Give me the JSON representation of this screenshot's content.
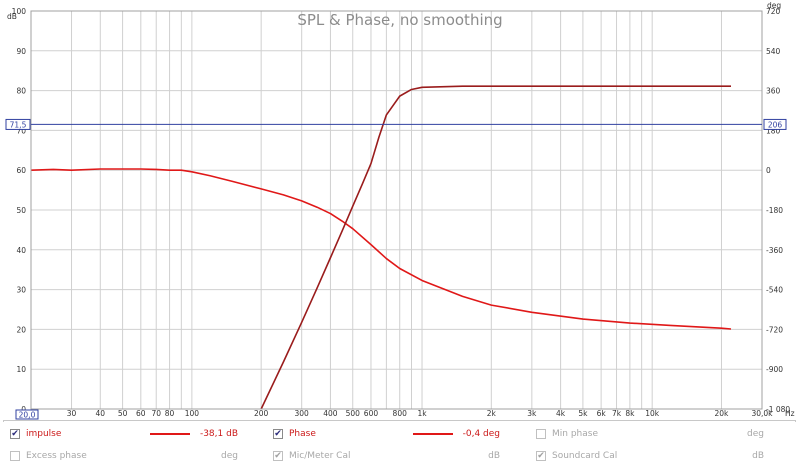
{
  "chart_data": {
    "type": "line",
    "title": "SPL & Phase, no smoothing",
    "x_axis": {
      "scale": "log",
      "range": [
        20,
        30000
      ],
      "ticks": [
        {
          "v": 30,
          "label": "30"
        },
        {
          "v": 40,
          "label": "40"
        },
        {
          "v": 50,
          "label": "50"
        },
        {
          "v": 60,
          "label": "60"
        },
        {
          "v": 70,
          "label": "70"
        },
        {
          "v": 80,
          "label": "80"
        },
        {
          "v": 100,
          "label": "100"
        },
        {
          "v": 200,
          "label": "200"
        },
        {
          "v": 300,
          "label": "300"
        },
        {
          "v": 400,
          "label": "400"
        },
        {
          "v": 500,
          "label": "500"
        },
        {
          "v": 600,
          "label": "600"
        },
        {
          "v": 800,
          "label": "800"
        },
        {
          "v": 1000,
          "label": "1k"
        },
        {
          "v": 2000,
          "label": "2k"
        },
        {
          "v": 3000,
          "label": "3k"
        },
        {
          "v": 4000,
          "label": "4k"
        },
        {
          "v": 5000,
          "label": "5k"
        },
        {
          "v": 6000,
          "label": "6k"
        },
        {
          "v": 7000,
          "label": "7k"
        },
        {
          "v": 8000,
          "label": "8k"
        },
        {
          "v": 10000,
          "label": "10k"
        },
        {
          "v": 20000,
          "label": "20k"
        }
      ],
      "start_label": "20,0",
      "end_label": "30,0k",
      "unit": "Hz"
    },
    "y_left": {
      "unit": "dB",
      "range": [
        0,
        100
      ],
      "ticks": [
        0,
        10,
        20,
        30,
        40,
        50,
        60,
        70,
        80,
        90,
        100
      ]
    },
    "y_right": {
      "unit": "deg",
      "range": [
        -1080,
        720
      ],
      "ticks": [
        {
          "v": 720,
          "label": "720"
        },
        {
          "v": 540,
          "label": "540"
        },
        {
          "v": 360,
          "label": "360"
        },
        {
          "v": 180,
          "label": "180"
        },
        {
          "v": 0,
          "label": "0"
        },
        {
          "v": -180,
          "label": "-180"
        },
        {
          "v": -360,
          "label": "-360"
        },
        {
          "v": -540,
          "label": "-540"
        },
        {
          "v": -720,
          "label": "-720"
        },
        {
          "v": -900,
          "label": "-900"
        },
        {
          "v": -1080,
          "label": "-1 080"
        }
      ]
    },
    "cursor": {
      "left_label": "71,5",
      "right_label": "206",
      "value_db": 71.5
    },
    "grid": true,
    "series": [
      {
        "name": "impulse",
        "axis": "left",
        "color": "#e01818",
        "x": [
          20,
          25,
          30,
          40,
          50,
          60,
          70,
          80,
          90,
          100,
          120,
          150,
          200,
          250,
          300,
          350,
          400,
          450,
          500,
          600,
          700,
          800,
          1000,
          1500,
          2000,
          3000,
          5000,
          8000,
          12000,
          20000,
          22000
        ],
        "y": [
          60,
          60.2,
          60,
          60.3,
          60.3,
          60.3,
          60.2,
          60,
          60,
          59.6,
          58.6,
          57.2,
          55.3,
          53.8,
          52.3,
          50.7,
          49.1,
          47.2,
          45.3,
          41.3,
          37.8,
          35.3,
          32.3,
          28.3,
          26.1,
          24.3,
          22.6,
          21.6,
          21,
          20.3,
          20.1
        ]
      },
      {
        "name": "Phase",
        "axis": "right",
        "color": "#9a1c1c",
        "x": [
          200,
          250,
          300,
          350,
          400,
          450,
          500,
          550,
          600,
          650,
          700,
          800,
          900,
          1000,
          1500,
          2000,
          5000,
          10000,
          22000
        ],
        "y": [
          -1080,
          -867,
          -688,
          -533,
          -396,
          -274,
          -163,
          -63,
          30,
          150,
          250,
          335,
          365,
          375,
          380,
          380,
          380,
          380,
          380
        ]
      }
    ]
  },
  "legend": {
    "row1": [
      {
        "checked": true,
        "name": "impulse",
        "value": "-38,1 dB",
        "active": true,
        "color": "#e01818"
      },
      {
        "checked": true,
        "name": "Phase",
        "value": "-0,4 deg",
        "active": true,
        "color": "#e01818"
      },
      {
        "checked": false,
        "name": "Min phase",
        "value": "deg",
        "active": false
      }
    ],
    "row2": [
      {
        "checked": false,
        "name": "Excess phase",
        "value": "deg",
        "active": false
      },
      {
        "checked": true,
        "name": "Mic/Meter Cal",
        "value": "dB",
        "active": false
      },
      {
        "checked": true,
        "name": "Soundcard Cal",
        "value": "dB",
        "active": false
      }
    ]
  },
  "colors": {
    "cursor": "#3040a0",
    "grid": "#d0d0d0",
    "title": "#8c8c8c"
  }
}
